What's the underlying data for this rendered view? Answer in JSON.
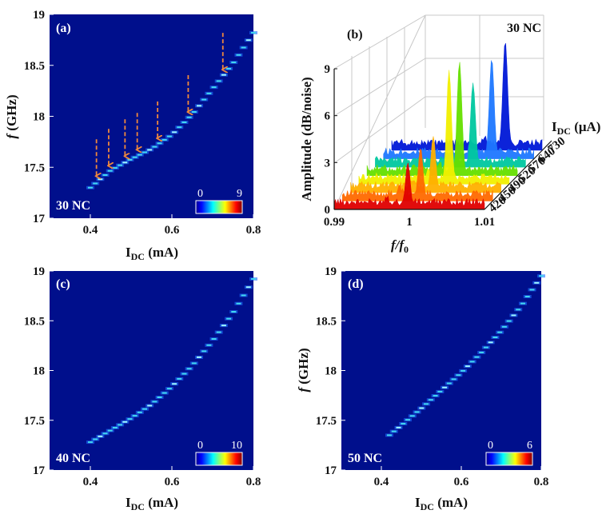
{
  "colors": {
    "background": "#000f8c",
    "arrow": "#f0883c"
  },
  "chart_data": [
    {
      "type": "heatmap",
      "panel_label": "(a)",
      "sample_label": "30 NC",
      "xlabel": "I",
      "xlabel_sub": "DC",
      "xlabel_unit": " (mA)",
      "ylabel": "f",
      "ylabel_unit": " (GHz)",
      "xlim": [
        0.3,
        0.8
      ],
      "ylim": [
        17,
        19
      ],
      "xticks": [
        0.4,
        0.6,
        0.8
      ],
      "xtick_labels": [
        "0.4",
        "0.6",
        "0.8"
      ],
      "yticks": [
        17,
        17.5,
        18,
        18.5,
        19
      ],
      "ytick_labels": [
        "17",
        "17.5",
        "18",
        "18.5",
        "19"
      ],
      "colorbar": {
        "min": 0,
        "max": 9,
        "min_label": "0",
        "max_label": "9"
      },
      "ridge": {
        "x": [
          0.4,
          0.45,
          0.5,
          0.55,
          0.6,
          0.65,
          0.7,
          0.75,
          0.8
        ],
        "y": [
          17.3,
          17.47,
          17.58,
          17.68,
          17.82,
          18.02,
          18.27,
          18.52,
          18.82
        ]
      },
      "arrows_at_current": [
        0.415,
        0.445,
        0.485,
        0.515,
        0.565,
        0.64,
        0.725
      ]
    },
    {
      "type": "line",
      "panel_label": "(b)",
      "sample_label": "30 NC",
      "xlabel": "f/f",
      "xlabel_sub": "0",
      "ylabel": "Amplitude (dB/noise)",
      "zlabel": "I",
      "zlabel_sub": "DC",
      "zlabel_unit": " (μA)",
      "xlim": [
        0.99,
        1.01
      ],
      "ylim": [
        0,
        9
      ],
      "xticks": [
        0.99,
        1,
        1.01
      ],
      "xtick_labels": [
        "0.99",
        "1",
        "1.01"
      ],
      "yticks": [
        0,
        3,
        6,
        9
      ],
      "ytick_labels": [
        "0",
        "3",
        "6",
        "9"
      ],
      "series": [
        {
          "name": "420",
          "peak": 3.0,
          "color": "#e00000"
        },
        {
          "name": "450",
          "peak": 3.4,
          "color": "#ff6a00"
        },
        {
          "name": "490",
          "peak": 3.6,
          "color": "#ffb000"
        },
        {
          "name": "520",
          "peak": 7.3,
          "color": "#f2f000"
        },
        {
          "name": "570",
          "peak": 7.3,
          "color": "#66e000"
        },
        {
          "name": "640",
          "peak": 5.4,
          "color": "#00c8a0"
        },
        {
          "name": "730",
          "peak": 6.4,
          "color": "#1e78ff"
        },
        {
          "name": "",
          "peak": 7.0,
          "color": "#0018d8"
        }
      ]
    },
    {
      "type": "heatmap",
      "panel_label": "(c)",
      "sample_label": "40 NC",
      "xlabel": "I",
      "xlabel_sub": "DC",
      "xlabel_unit": " (mA)",
      "ylabel": "f",
      "ylabel_unit": " (GHz)",
      "xlim": [
        0.3,
        0.8
      ],
      "ylim": [
        17,
        19
      ],
      "xticks": [
        0.4,
        0.6,
        0.8
      ],
      "xtick_labels": [
        "0.4",
        "0.6",
        "0.8"
      ],
      "yticks": [
        17,
        17.5,
        18,
        18.5,
        19
      ],
      "ytick_labels": [
        "17",
        "17.5",
        "18",
        "18.5",
        "19"
      ],
      "colorbar": {
        "min": 0,
        "max": 10,
        "min_label": "0",
        "max_label": "10"
      },
      "ridge": {
        "x": [
          0.4,
          0.45,
          0.5,
          0.55,
          0.6,
          0.65,
          0.7,
          0.75,
          0.8
        ],
        "y": [
          17.28,
          17.4,
          17.52,
          17.66,
          17.84,
          18.05,
          18.3,
          18.58,
          18.92
        ]
      },
      "arrows_at_current": []
    },
    {
      "type": "heatmap",
      "panel_label": "(d)",
      "sample_label": "50 NC",
      "xlabel": "I",
      "xlabel_sub": "DC",
      "xlabel_unit": " (mA)",
      "ylabel": "f",
      "ylabel_unit": " (GHz)",
      "xlim": [
        0.3,
        0.8
      ],
      "ylim": [
        17,
        19
      ],
      "xticks": [
        0.4,
        0.6,
        0.8
      ],
      "xtick_labels": [
        "0.4",
        "0.6",
        "0.8"
      ],
      "yticks": [
        17,
        17.5,
        18,
        18.5,
        19
      ],
      "ytick_labels": [
        "17",
        "17.5",
        "18",
        "18.5",
        "19"
      ],
      "colorbar": {
        "min": 0,
        "max": 6,
        "min_label": "0",
        "max_label": "6"
      },
      "ridge": {
        "x": [
          0.42,
          0.45,
          0.5,
          0.55,
          0.6,
          0.65,
          0.7,
          0.75,
          0.8
        ],
        "y": [
          17.35,
          17.45,
          17.62,
          17.8,
          17.98,
          18.18,
          18.4,
          18.65,
          18.95
        ]
      },
      "arrows_at_current": []
    }
  ]
}
